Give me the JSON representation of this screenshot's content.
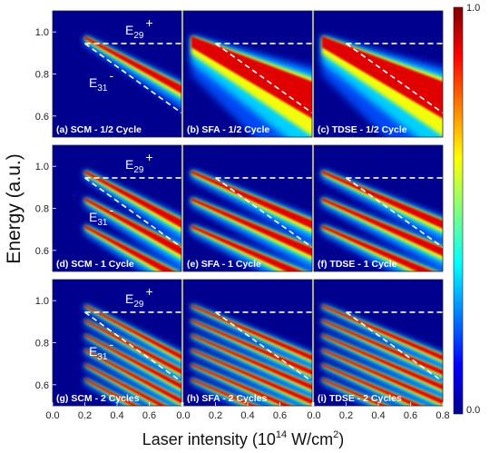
{
  "chart_data": {
    "type": "heatmap",
    "xlabel": "Laser intensity (10",
    "xlabel_exp": "14",
    "xlabel_unit": " W/cm",
    "xlabel_unit_exp": "2",
    "xlabel_close": ")",
    "ylabel": "Energy (a.u.)",
    "xlim": [
      0.0,
      0.8
    ],
    "ylim": [
      0.5,
      1.1
    ],
    "x_ticks": [
      "0.0",
      "0.2",
      "0.4",
      "0.6",
      "0.8"
    ],
    "y_ticks": [
      "0.6",
      "0.8",
      "1.0"
    ],
    "colorbar": {
      "min_label": "0.0",
      "max_label": "1.0",
      "range": [
        0.0,
        1.0
      ]
    },
    "annotations": {
      "e29": "E",
      "e29_sub": "29",
      "e29_sign": "+",
      "e31": "E",
      "e31_sub": "31",
      "e31_sign": "-"
    },
    "panels": [
      {
        "label": "(a) SCM - 1/2 Cycle",
        "method": "SCM",
        "cycles": 0.5
      },
      {
        "label": "(b) SFA - 1/2 Cycle",
        "method": "SFA",
        "cycles": 0.5
      },
      {
        "label": "(c) TDSE - 1/2 Cycle",
        "method": "TDSE",
        "cycles": 0.5
      },
      {
        "label": "(d) SCM - 1 Cycle",
        "method": "SCM",
        "cycles": 1
      },
      {
        "label": "(e) SFA - 1 Cycle",
        "method": "SFA",
        "cycles": 1
      },
      {
        "label": "(f) TDSE - 1 Cycle",
        "method": "TDSE",
        "cycles": 1
      },
      {
        "label": "(g) SCM - 2 Cycles",
        "method": "SCM",
        "cycles": 2
      },
      {
        "label": "(h) SFA - 2 Cycles",
        "method": "SFA",
        "cycles": 2
      },
      {
        "label": "(i) TDSE - 2 Cycles",
        "method": "TDSE",
        "cycles": 2
      }
    ],
    "reference_lines": {
      "e29_plus_energy": 0.945,
      "e31_minus_start": [
        0.2,
        0.945
      ],
      "e31_minus_end": [
        0.8,
        0.615
      ]
    },
    "colors": {
      "low": "#00008f",
      "high": "#c80000"
    }
  }
}
